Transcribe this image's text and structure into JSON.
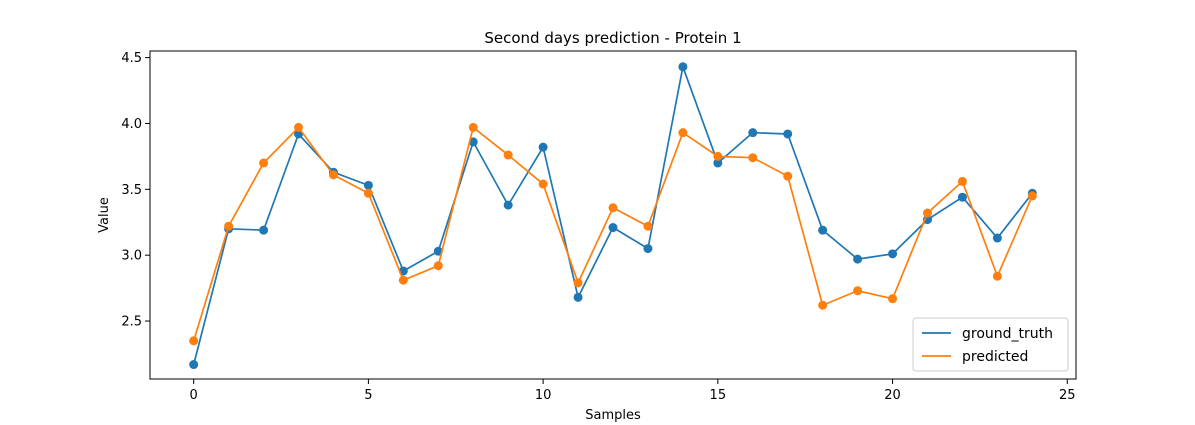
{
  "chart_data": {
    "type": "line",
    "title": "Second days prediction - Protein 1",
    "xlabel": "Samples",
    "ylabel": "Value",
    "xlim": [
      -1.25,
      25.25
    ],
    "ylim": [
      2.06,
      4.55
    ],
    "xticks": [
      0,
      5,
      10,
      15,
      20,
      25
    ],
    "yticks": [
      2.5,
      3.0,
      3.5,
      4.0,
      4.5
    ],
    "xtick_labels": [
      "0",
      "5",
      "10",
      "15",
      "20",
      "25"
    ],
    "ytick_labels": [
      "2.5",
      "3.0",
      "3.5",
      "4.0",
      "4.5"
    ],
    "grid": false,
    "legend_position": "lower-right",
    "x": [
      0,
      1,
      2,
      3,
      4,
      5,
      6,
      7,
      8,
      9,
      10,
      11,
      12,
      13,
      14,
      15,
      16,
      17,
      18,
      19,
      20,
      21,
      22,
      23,
      24
    ],
    "series": [
      {
        "name": "ground_truth",
        "color": "#1f77b4",
        "values": [
          2.17,
          3.2,
          3.19,
          3.92,
          3.63,
          3.53,
          2.88,
          3.03,
          3.86,
          3.38,
          3.82,
          2.68,
          3.21,
          3.05,
          4.43,
          3.7,
          3.93,
          3.92,
          3.19,
          2.97,
          3.01,
          3.27,
          3.44,
          3.13,
          3.47
        ]
      },
      {
        "name": "predicted",
        "color": "#ff7f0e",
        "values": [
          2.35,
          3.22,
          3.7,
          3.97,
          3.61,
          3.47,
          2.81,
          2.92,
          3.97,
          3.76,
          3.54,
          2.79,
          3.36,
          3.22,
          3.93,
          3.75,
          3.74,
          3.6,
          2.62,
          2.73,
          2.67,
          3.32,
          3.56,
          2.84,
          3.45
        ]
      }
    ]
  }
}
